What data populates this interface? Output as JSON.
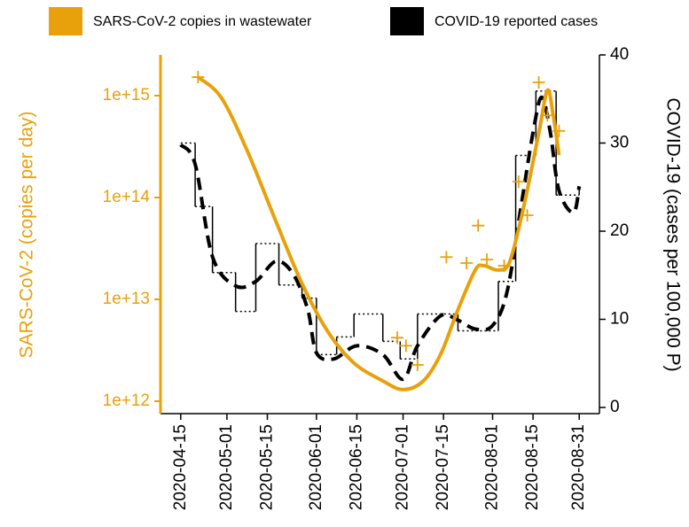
{
  "chart_data": {
    "type": "dual-axis-line",
    "y_label": "SARS-CoV-2 (copies per day)",
    "y2_label": "COVID-19 (cases per 100,000 P)",
    "legend": "top",
    "xlim": [
      "2020-04-08",
      "2020-09-07"
    ],
    "xticks": [
      "2020-04-15",
      "2020-05-01",
      "2020-05-15",
      "2020-06-01",
      "2020-06-15",
      "2020-07-01",
      "2020-07-15",
      "2020-08-01",
      "2020-08-15",
      "2020-08-31"
    ],
    "ylog": true,
    "ylim": [
      755000000000,
      2510000000000000
    ],
    "yticks": [
      {
        "value": 1000000000000.0,
        "label": "1e+12"
      },
      {
        "value": 10000000000000.0,
        "label": "1e+13"
      },
      {
        "value": 100000000000000.0,
        "label": "1e+14"
      },
      {
        "value": 1000000000000000.0,
        "label": "1e+15"
      }
    ],
    "y2lim": [
      -0.7,
      40
    ],
    "y2ticks": [
      0,
      10,
      20,
      30,
      40
    ],
    "series": [
      {
        "name": "SARS-CoV-2 copies in wastewater",
        "style": "smooth",
        "axis": "y",
        "color": "#e8a10a",
        "x": [
          "2020-04-21",
          "2020-04-29",
          "2020-05-08",
          "2020-05-18",
          "2020-05-27",
          "2020-06-05",
          "2020-06-14",
          "2020-06-24",
          "2020-07-01",
          "2020-07-08",
          "2020-07-14",
          "2020-07-20",
          "2020-07-26",
          "2020-07-29",
          "2020-08-03",
          "2020-08-07",
          "2020-08-12",
          "2020-08-17",
          "2020-08-20",
          "2020-08-22",
          "2020-08-24"
        ],
        "values": [
          1520000000000000.0,
          960000000000000.0,
          289000000000000.0,
          58000000000000.0,
          14300000000000.0,
          4800000000000.0,
          2370000000000.0,
          1580000000000.0,
          1300000000000.0,
          1580000000000.0,
          2890000000000.0,
          7900000000000.0,
          19400000000000.0,
          21400000000000.0,
          19400000000000.0,
          23700000000000.0,
          87000000000000.0,
          430000000000000.0,
          1130000000000000.0,
          640000000000000.0,
          261000000000000.0
        ]
      },
      {
        "style": "markers",
        "axis": "y",
        "color": "#e8a10a",
        "x": [
          "2020-04-21",
          "2020-06-29",
          "2020-07-02",
          "2020-07-06",
          "2020-07-16",
          "2020-07-23",
          "2020-07-27",
          "2020-07-30",
          "2020-08-05",
          "2020-08-10",
          "2020-08-13",
          "2020-08-17",
          "2020-08-20",
          "2020-08-24"
        ],
        "values": [
          1520000000000000.0,
          4200000000000.0,
          3500000000000.0,
          2270000000000.0,
          26000000000000.0,
          22700000000000.0,
          53000000000000.0,
          24600000000000.0,
          21400000000000.0,
          143000000000000.0,
          67000000000000.0,
          1350000000000000.0,
          640000000000000.0,
          450000000000000.0
        ]
      },
      {
        "name": "COVID-19 reported cases",
        "style": "step",
        "axis": "y2",
        "color": "#000000",
        "x": [
          "2020-04-15",
          "2020-04-20",
          "2020-04-26",
          "2020-05-04",
          "2020-05-11",
          "2020-05-19",
          "2020-05-27",
          "2020-06-01",
          "2020-06-08",
          "2020-06-14",
          "2020-06-24",
          "2020-06-30",
          "2020-07-06",
          "2020-07-20",
          "2020-08-03",
          "2020-08-09",
          "2020-08-16",
          "2020-08-23",
          "2020-08-31"
        ],
        "values": [
          30.0,
          22.8,
          15.3,
          10.9,
          18.6,
          13.9,
          12.4,
          6.0,
          8.0,
          10.6,
          7.5,
          5.5,
          10.6,
          8.7,
          14.3,
          28.6,
          35.9,
          24.1,
          24.8
        ]
      },
      {
        "style": "dashed",
        "axis": "y2",
        "color": "#000000",
        "x": [
          "2020-04-15",
          "2020-04-20",
          "2020-04-26",
          "2020-05-04",
          "2020-05-11",
          "2020-05-18",
          "2020-05-24",
          "2020-05-29",
          "2020-06-01",
          "2020-06-07",
          "2020-06-15",
          "2020-06-24",
          "2020-07-01",
          "2020-07-06",
          "2020-07-14",
          "2020-07-20",
          "2020-07-26",
          "2020-08-01",
          "2020-08-06",
          "2020-08-11",
          "2020-08-15",
          "2020-08-18",
          "2020-08-21",
          "2020-08-24",
          "2020-08-29",
          "2020-08-31"
        ],
        "values": [
          29.8,
          27.6,
          17.1,
          13.8,
          14.3,
          16.6,
          15.1,
          11.1,
          6.2,
          5.5,
          7.0,
          6.0,
          3.2,
          7.0,
          10.4,
          9.9,
          8.9,
          9.3,
          13.1,
          23.1,
          31.2,
          35.2,
          31.2,
          24.6,
          22.1,
          25.1
        ]
      }
    ]
  }
}
